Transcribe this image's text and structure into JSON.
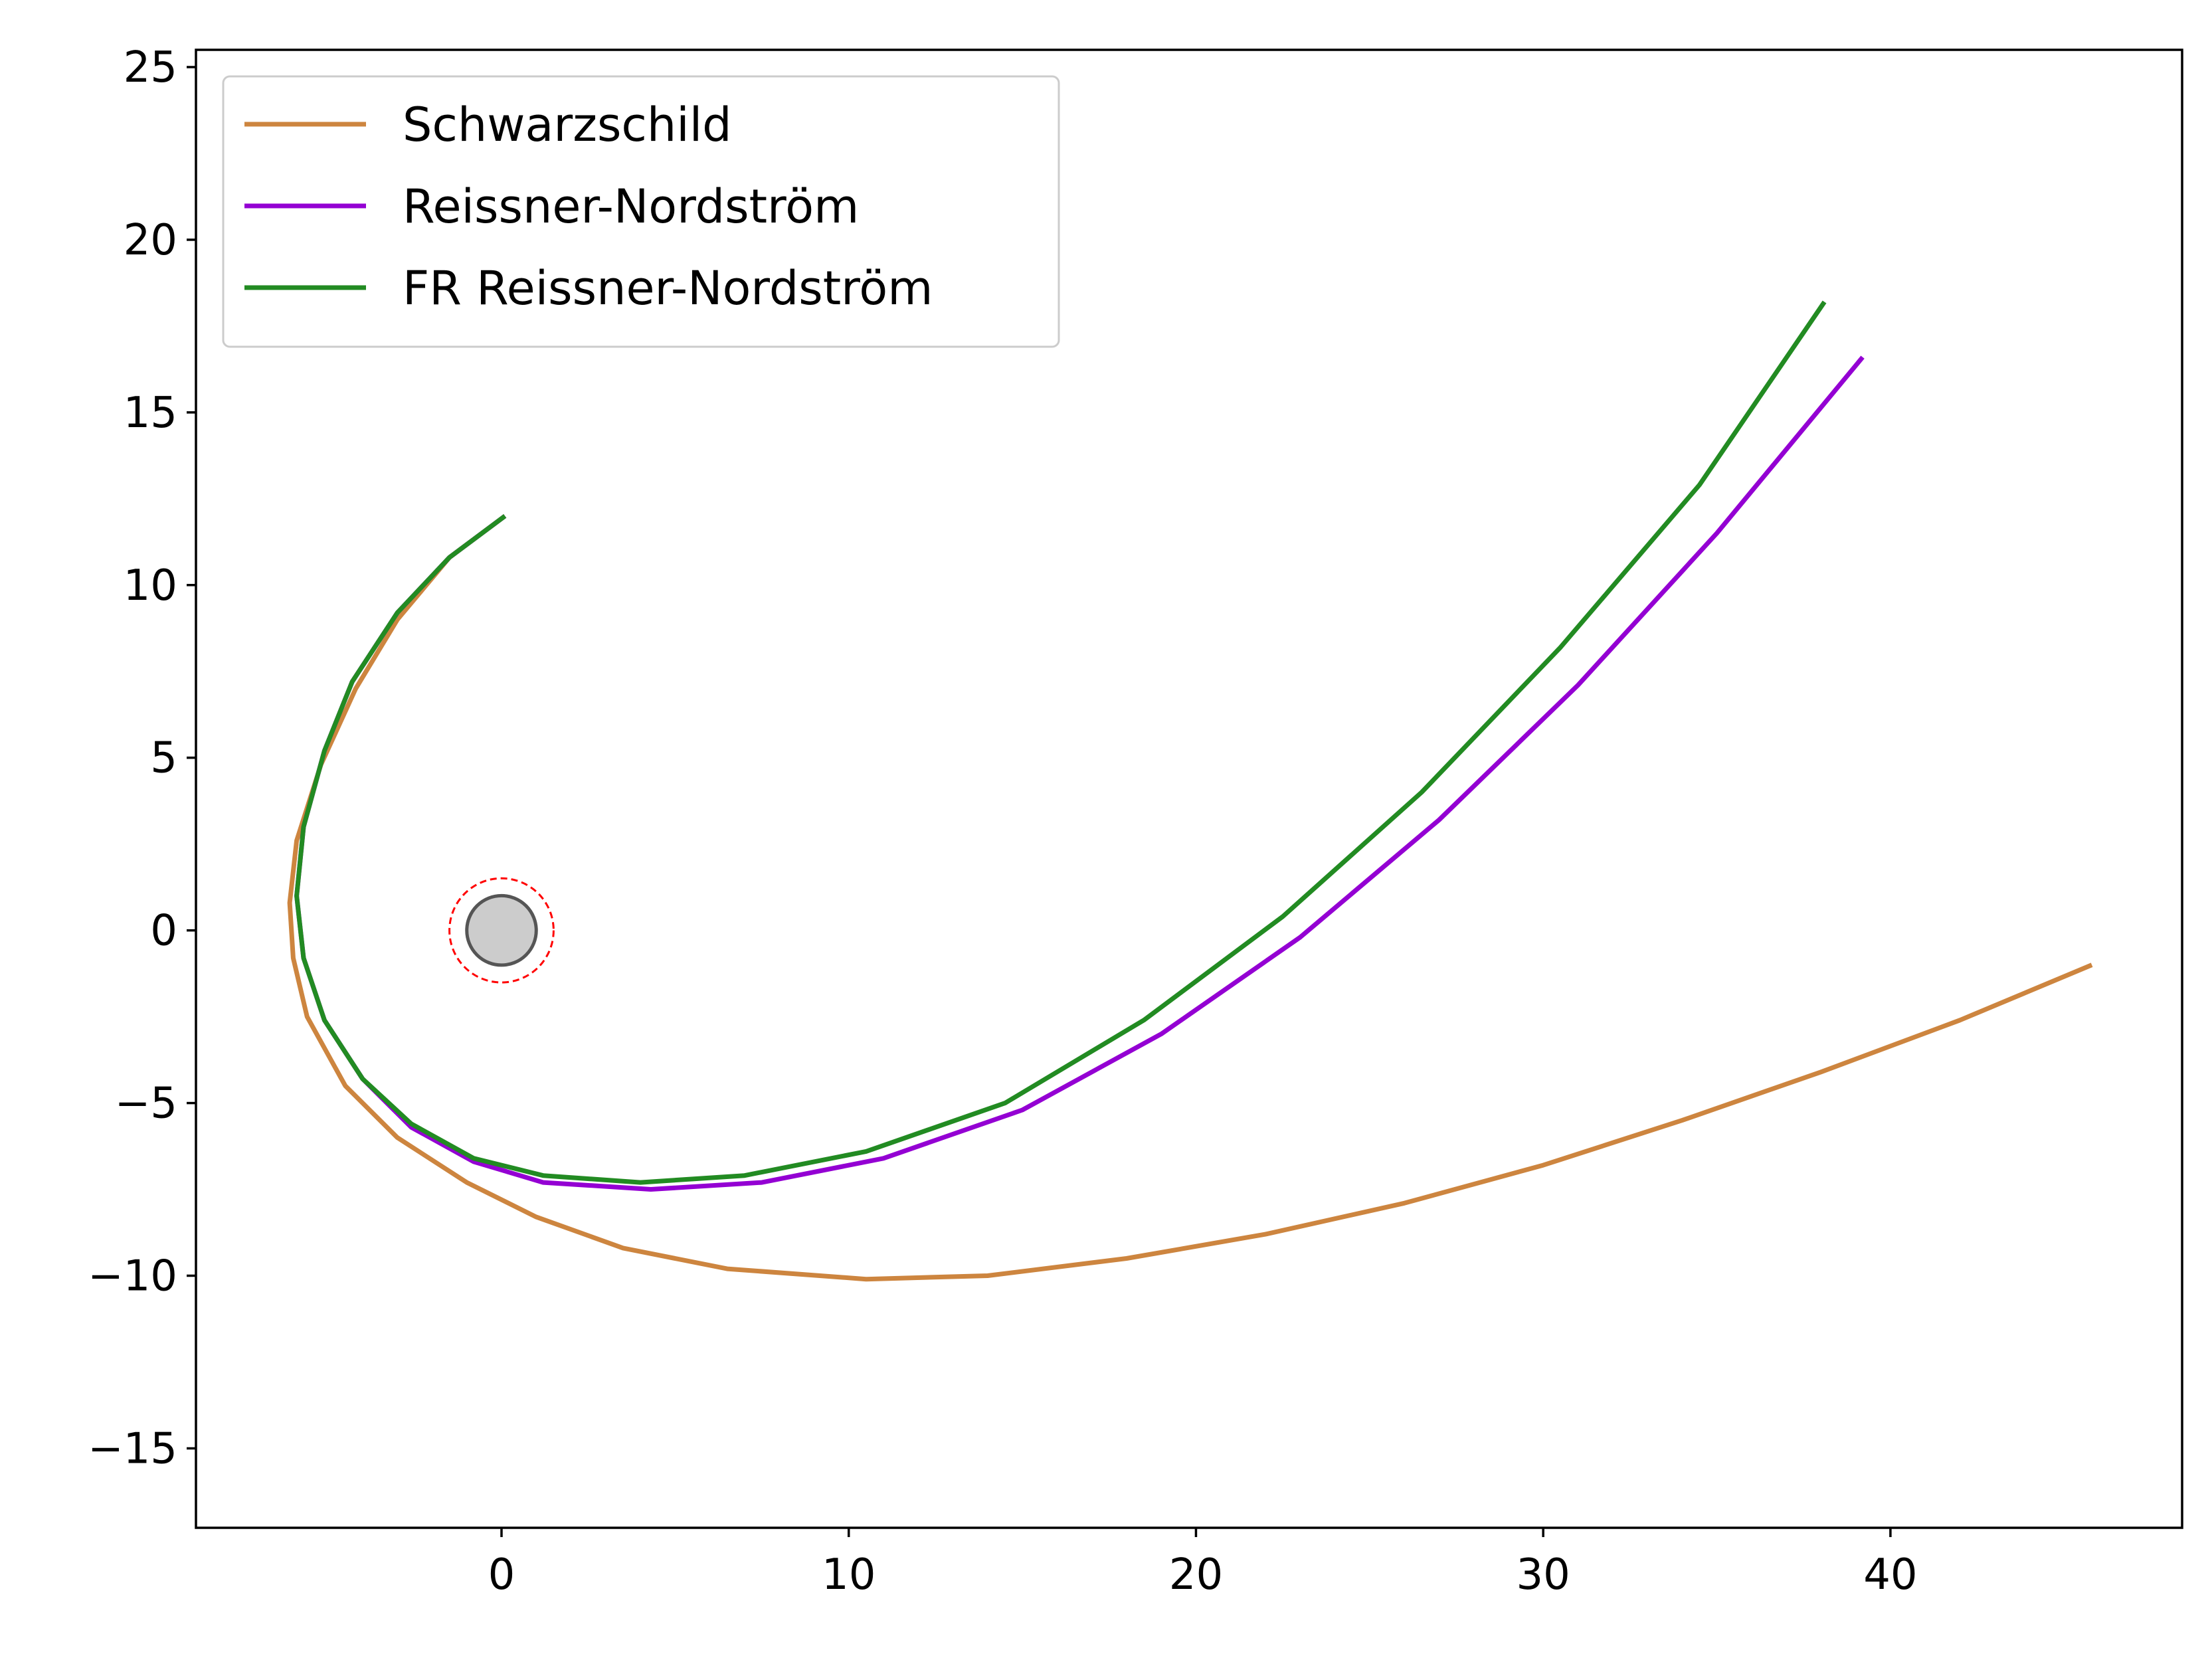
{
  "chart_data": {
    "type": "line",
    "title": "",
    "xlabel": "",
    "ylabel": "",
    "xlim": [
      -8.8,
      48.4
    ],
    "ylim": [
      -17.3,
      25.5
    ],
    "xticks": [
      0,
      10,
      20,
      30,
      40
    ],
    "yticks": [
      -15,
      -10,
      -5,
      0,
      5,
      10,
      15,
      20,
      25
    ],
    "xtick_labels": [
      "0",
      "10",
      "20",
      "30",
      "40"
    ],
    "ytick_labels": [
      "−15",
      "−10",
      "−5",
      "0",
      "5",
      "10",
      "15",
      "20",
      "25"
    ],
    "grid": false,
    "legend_position": "top-left",
    "series": [
      {
        "name": "Schwarzschild",
        "color": "#cd853f",
        "points": [
          [
            0.1,
            12.0
          ],
          [
            -1.5,
            10.8
          ],
          [
            -3.0,
            9.0
          ],
          [
            -4.2,
            7.0
          ],
          [
            -5.2,
            4.8
          ],
          [
            -5.9,
            2.6
          ],
          [
            -6.1,
            0.8
          ],
          [
            -6.0,
            -0.8
          ],
          [
            -5.6,
            -2.5
          ],
          [
            -4.5,
            -4.5
          ],
          [
            -3.0,
            -6.0
          ],
          [
            -1.0,
            -7.3
          ],
          [
            1.0,
            -8.3
          ],
          [
            3.5,
            -9.2
          ],
          [
            6.5,
            -9.8
          ],
          [
            10.5,
            -10.1
          ],
          [
            14.0,
            -10.0
          ],
          [
            18.0,
            -9.5
          ],
          [
            22.0,
            -8.8
          ],
          [
            26.0,
            -7.9
          ],
          [
            30.0,
            -6.8
          ],
          [
            34.0,
            -5.5
          ],
          [
            38.0,
            -4.1
          ],
          [
            42.0,
            -2.6
          ],
          [
            45.8,
            -1.0
          ]
        ]
      },
      {
        "name": "Reissner-Nordström",
        "color": "#9400d3",
        "points": [
          [
            0.1,
            12.0
          ],
          [
            -1.5,
            10.8
          ],
          [
            -3.0,
            9.2
          ],
          [
            -4.3,
            7.2
          ],
          [
            -5.1,
            5.2
          ],
          [
            -5.7,
            3.0
          ],
          [
            -5.9,
            1.0
          ],
          [
            -5.7,
            -0.8
          ],
          [
            -5.1,
            -2.6
          ],
          [
            -4.0,
            -4.3
          ],
          [
            -2.6,
            -5.7
          ],
          [
            -0.8,
            -6.7
          ],
          [
            1.2,
            -7.3
          ],
          [
            4.3,
            -7.5
          ],
          [
            7.5,
            -7.3
          ],
          [
            11.0,
            -6.6
          ],
          [
            15.0,
            -5.2
          ],
          [
            19.0,
            -3.0
          ],
          [
            23.0,
            -0.2
          ],
          [
            27.0,
            3.2
          ],
          [
            31.0,
            7.1
          ],
          [
            35.0,
            11.5
          ],
          [
            39.2,
            16.6
          ]
        ]
      },
      {
        "name": "FR Reissner-Nordström",
        "color": "#228b22",
        "points": [
          [
            0.1,
            12.0
          ],
          [
            -1.5,
            10.8
          ],
          [
            -3.0,
            9.2
          ],
          [
            -4.3,
            7.2
          ],
          [
            -5.1,
            5.2
          ],
          [
            -5.7,
            3.0
          ],
          [
            -5.9,
            1.0
          ],
          [
            -5.7,
            -0.8
          ],
          [
            -5.1,
            -2.6
          ],
          [
            -4.0,
            -4.3
          ],
          [
            -2.6,
            -5.6
          ],
          [
            -0.8,
            -6.6
          ],
          [
            1.2,
            -7.1
          ],
          [
            4.0,
            -7.3
          ],
          [
            7.0,
            -7.1
          ],
          [
            10.5,
            -6.4
          ],
          [
            14.5,
            -5.0
          ],
          [
            18.5,
            -2.6
          ],
          [
            22.5,
            0.4
          ],
          [
            26.5,
            4.0
          ],
          [
            30.5,
            8.2
          ],
          [
            34.5,
            12.9
          ],
          [
            38.1,
            18.2
          ]
        ]
      }
    ],
    "annotations": [
      {
        "type": "filled-circle",
        "x": 0,
        "y": 0,
        "radius": 1.0,
        "fill": "#cccccc",
        "stroke": "#555555"
      },
      {
        "type": "dashed-circle",
        "x": 0,
        "y": 0,
        "radius": 1.5,
        "stroke": "#ff0000"
      }
    ]
  }
}
